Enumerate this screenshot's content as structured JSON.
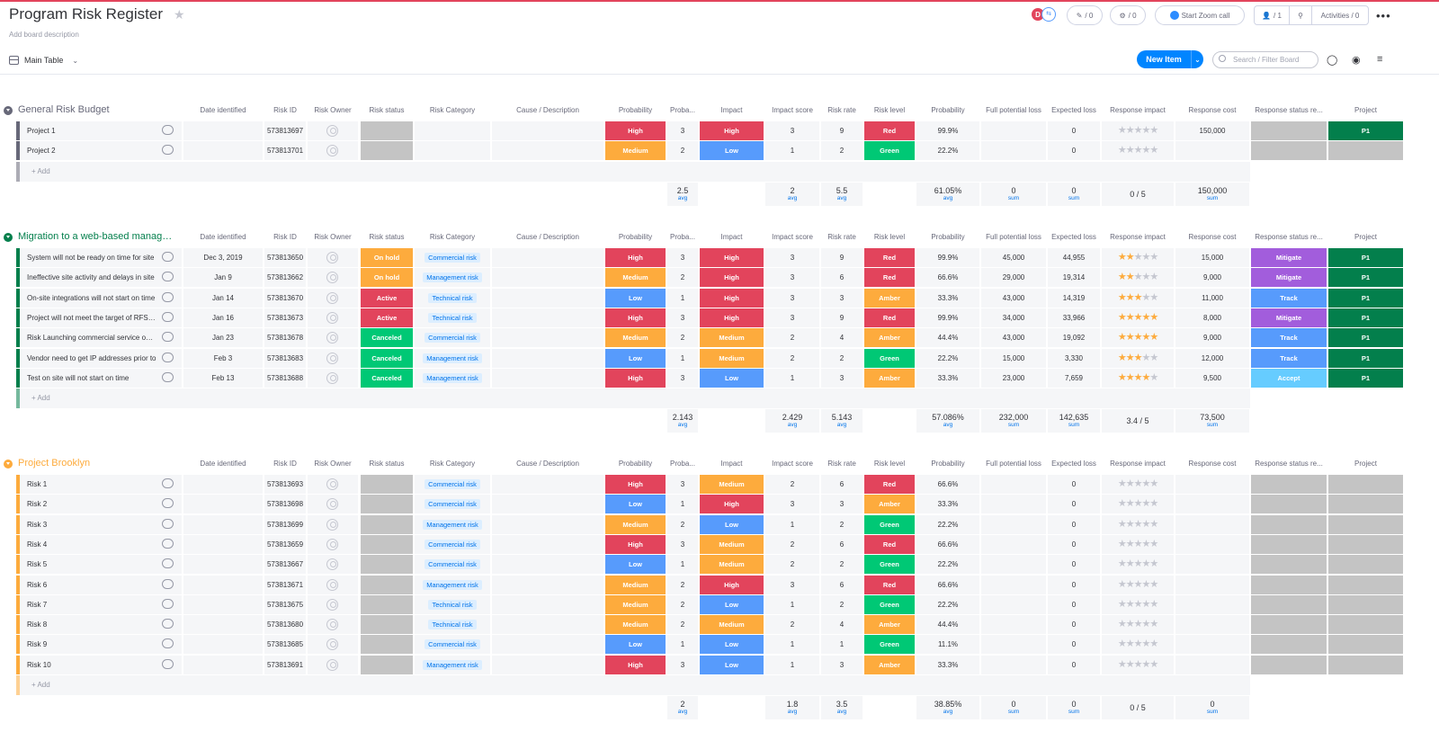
{
  "board": {
    "title": "Program Risk Register",
    "description": "Add board description",
    "view_label": "Main Table"
  },
  "header": {
    "avatar_initial": "D",
    "updates_count": "/ 0",
    "integrations_count": "/ 0",
    "zoom_label": "Start Zoom call",
    "members_count": "/ 1",
    "activities_label": "Activities / 0"
  },
  "toolbar": {
    "new_item_label": "New Item",
    "search_placeholder": "Search / Filter Board"
  },
  "colors": {
    "High": "#e2445c",
    "Medium": "#fdab3d",
    "Low": "#579bfc",
    "Red": "#e2445c",
    "Amber": "#fdab3d",
    "Green": "#00c875",
    "On hold": "#fdab3d",
    "Active": "#e2445c",
    "Canceled": "#00c875",
    "Mitigate": "#a25ddc",
    "Track": "#579bfc",
    "Accept": "#66ccff",
    "P1": "#037f4c",
    "empty": "#c4c4c4",
    "group_gray": "#676879",
    "group_green": "#037f4c",
    "group_orange": "#fdab3d",
    "star_on": "#fdab3d",
    "star_off": "#c5c7d0"
  },
  "columns": [
    "",
    "Date identified",
    "Risk ID",
    "Risk Owner",
    "Risk status",
    "Risk Category",
    "Cause / Description",
    "Probability",
    "Probability",
    "Impact",
    "Impact score",
    "Risk rate",
    "Risk level",
    "Probability",
    "Full potential loss",
    "Expected loss",
    "Response impact",
    "Response cost",
    "Response status re...",
    "Project"
  ],
  "add_label": "+ Add",
  "groups": [
    {
      "title": "General Risk Budget",
      "color": "#676879",
      "title_color": "#676879",
      "rows": [
        {
          "name": "Project 1",
          "date": "",
          "id": "573813697",
          "status": "",
          "category": "",
          "prob": "High",
          "prob_n": "3",
          "impact": "High",
          "impact_score": "3",
          "rate": "9",
          "level": "Red",
          "prob_pct": "99.9%",
          "full_loss": "",
          "exp_loss": "0",
          "stars": 0,
          "cost": "150,000",
          "resp_status": "",
          "project": "P1"
        },
        {
          "name": "Project 2",
          "date": "",
          "id": "573813701",
          "status": "",
          "category": "",
          "prob": "Medium",
          "prob_n": "2",
          "impact": "Low",
          "impact_score": "1",
          "rate": "2",
          "level": "Green",
          "prob_pct": "22.2%",
          "full_loss": "",
          "exp_loss": "0",
          "stars": 0,
          "cost": "",
          "resp_status": "",
          "project": ""
        }
      ],
      "summary": {
        "prob_n": "2.5",
        "impact_score": "2",
        "rate": "5.5",
        "prob_pct": "61.05%",
        "full_loss": "0",
        "exp_loss": "0",
        "resp_impact": "0 / 5",
        "cost": "150,000"
      }
    },
    {
      "title": "Migration to a web-based management system",
      "color": "#037f4c",
      "title_color": "#037f4c",
      "rows": [
        {
          "name": "System will not be ready on time for site",
          "date": "Dec 3, 2019",
          "id": "573813650",
          "status": "On hold",
          "category": "Commercial risk",
          "prob": "High",
          "prob_n": "3",
          "impact": "High",
          "impact_score": "3",
          "rate": "9",
          "level": "Red",
          "prob_pct": "99.9%",
          "full_loss": "45,000",
          "exp_loss": "44,955",
          "stars": 2,
          "cost": "15,000",
          "resp_status": "Mitigate",
          "project": "P1"
        },
        {
          "name": "Ineffective site activity and delays in site",
          "date": "Jan 9",
          "id": "573813662",
          "status": "On hold",
          "category": "Management risk",
          "prob": "Medium",
          "prob_n": "2",
          "impact": "High",
          "impact_score": "3",
          "rate": "6",
          "level": "Red",
          "prob_pct": "66.6%",
          "full_loss": "29,000",
          "exp_loss": "19,314",
          "stars": 2,
          "cost": "9,000",
          "resp_status": "Mitigate",
          "project": "P1"
        },
        {
          "name": "On-site integrations will not start on time",
          "date": "Jan 14",
          "id": "573813670",
          "status": "Active",
          "category": "Technical risk",
          "prob": "Low",
          "prob_n": "1",
          "impact": "High",
          "impact_score": "3",
          "rate": "3",
          "level": "Amber",
          "prob_pct": "33.3%",
          "full_loss": "43,000",
          "exp_loss": "14,319",
          "stars": 3,
          "cost": "11,000",
          "resp_status": "Track",
          "project": "P1"
        },
        {
          "name": "Project will not meet the target of RFS date",
          "date": "Jan 16",
          "id": "573813673",
          "status": "Active",
          "category": "Technical risk",
          "prob": "High",
          "prob_n": "3",
          "impact": "High",
          "impact_score": "3",
          "rate": "9",
          "level": "Red",
          "prob_pct": "99.9%",
          "full_loss": "34,000",
          "exp_loss": "33,966",
          "stars": 5,
          "cost": "8,000",
          "resp_status": "Mitigate",
          "project": "P1"
        },
        {
          "name": "Risk Launching commercial service on time",
          "date": "Jan 23",
          "id": "573813678",
          "status": "Canceled",
          "category": "Commercial risk",
          "prob": "Medium",
          "prob_n": "2",
          "impact": "Medium",
          "impact_score": "2",
          "rate": "4",
          "level": "Amber",
          "prob_pct": "44.4%",
          "full_loss": "43,000",
          "exp_loss": "19,092",
          "stars": 5,
          "cost": "9,000",
          "resp_status": "Track",
          "project": "P1"
        },
        {
          "name": "Vendor need to get IP addresses prior to",
          "date": "Feb 3",
          "id": "573813683",
          "status": "Canceled",
          "category": "Management risk",
          "prob": "Low",
          "prob_n": "1",
          "impact": "Medium",
          "impact_score": "2",
          "rate": "2",
          "level": "Green",
          "prob_pct": "22.2%",
          "full_loss": "15,000",
          "exp_loss": "3,330",
          "stars": 3,
          "cost": "12,000",
          "resp_status": "Track",
          "project": "P1"
        },
        {
          "name": "Test on site will not start on time",
          "date": "Feb 13",
          "id": "573813688",
          "status": "Canceled",
          "category": "Management risk",
          "prob": "High",
          "prob_n": "3",
          "impact": "Low",
          "impact_score": "1",
          "rate": "3",
          "level": "Amber",
          "prob_pct": "33.3%",
          "full_loss": "23,000",
          "exp_loss": "7,659",
          "stars": 4,
          "cost": "9,500",
          "resp_status": "Accept",
          "project": "P1"
        }
      ],
      "summary": {
        "prob_n": "2.143",
        "impact_score": "2.429",
        "rate": "5.143",
        "prob_pct": "57.086%",
        "full_loss": "232,000",
        "exp_loss": "142,635",
        "resp_impact": "3.4 / 5",
        "cost": "73,500"
      }
    },
    {
      "title": "Project Brooklyn",
      "color": "#fdab3d",
      "title_color": "#fdab3d",
      "rows": [
        {
          "name": "Risk 1",
          "date": "",
          "id": "573813693",
          "status": "",
          "category": "Commercial risk",
          "prob": "High",
          "prob_n": "3",
          "impact": "Medium",
          "impact_score": "2",
          "rate": "6",
          "level": "Red",
          "prob_pct": "66.6%",
          "full_loss": "",
          "exp_loss": "0",
          "stars": 0,
          "cost": "",
          "resp_status": "",
          "project": ""
        },
        {
          "name": "Risk 2",
          "date": "",
          "id": "573813698",
          "status": "",
          "category": "Commercial risk",
          "prob": "Low",
          "prob_n": "1",
          "impact": "High",
          "impact_score": "3",
          "rate": "3",
          "level": "Amber",
          "prob_pct": "33.3%",
          "full_loss": "",
          "exp_loss": "0",
          "stars": 0,
          "cost": "",
          "resp_status": "",
          "project": ""
        },
        {
          "name": "Risk 3",
          "date": "",
          "id": "573813699",
          "status": "",
          "category": "Management risk",
          "prob": "Medium",
          "prob_n": "2",
          "impact": "Low",
          "impact_score": "1",
          "rate": "2",
          "level": "Green",
          "prob_pct": "22.2%",
          "full_loss": "",
          "exp_loss": "0",
          "stars": 0,
          "cost": "",
          "resp_status": "",
          "project": ""
        },
        {
          "name": "Risk 4",
          "date": "",
          "id": "573813659",
          "status": "",
          "category": "Commercial risk",
          "prob": "High",
          "prob_n": "3",
          "impact": "Medium",
          "impact_score": "2",
          "rate": "6",
          "level": "Red",
          "prob_pct": "66.6%",
          "full_loss": "",
          "exp_loss": "0",
          "stars": 0,
          "cost": "",
          "resp_status": "",
          "project": ""
        },
        {
          "name": "Risk 5",
          "date": "",
          "id": "573813667",
          "status": "",
          "category": "Commercial risk",
          "prob": "Low",
          "prob_n": "1",
          "impact": "Medium",
          "impact_score": "2",
          "rate": "2",
          "level": "Green",
          "prob_pct": "22.2%",
          "full_loss": "",
          "exp_loss": "0",
          "stars": 0,
          "cost": "",
          "resp_status": "",
          "project": ""
        },
        {
          "name": "Risk 6",
          "date": "",
          "id": "573813671",
          "status": "",
          "category": "Management risk",
          "prob": "Medium",
          "prob_n": "2",
          "impact": "High",
          "impact_score": "3",
          "rate": "6",
          "level": "Red",
          "prob_pct": "66.6%",
          "full_loss": "",
          "exp_loss": "0",
          "stars": 0,
          "cost": "",
          "resp_status": "",
          "project": ""
        },
        {
          "name": "Risk 7",
          "date": "",
          "id": "573813675",
          "status": "",
          "category": "Technical risk",
          "prob": "Medium",
          "prob_n": "2",
          "impact": "Low",
          "impact_score": "1",
          "rate": "2",
          "level": "Green",
          "prob_pct": "22.2%",
          "full_loss": "",
          "exp_loss": "0",
          "stars": 0,
          "cost": "",
          "resp_status": "",
          "project": ""
        },
        {
          "name": "Risk 8",
          "date": "",
          "id": "573813680",
          "status": "",
          "category": "Technical risk",
          "prob": "Medium",
          "prob_n": "2",
          "impact": "Medium",
          "impact_score": "2",
          "rate": "4",
          "level": "Amber",
          "prob_pct": "44.4%",
          "full_loss": "",
          "exp_loss": "0",
          "stars": 0,
          "cost": "",
          "resp_status": "",
          "project": ""
        },
        {
          "name": "Risk 9",
          "date": "",
          "id": "573813685",
          "status": "",
          "category": "Commercial risk",
          "prob": "Low",
          "prob_n": "1",
          "impact": "Low",
          "impact_score": "1",
          "rate": "1",
          "level": "Green",
          "prob_pct": "11.1%",
          "full_loss": "",
          "exp_loss": "0",
          "stars": 0,
          "cost": "",
          "resp_status": "",
          "project": ""
        },
        {
          "name": "Risk 10",
          "date": "",
          "id": "573813691",
          "status": "",
          "category": "Management risk",
          "prob": "High",
          "prob_n": "3",
          "impact": "Low",
          "impact_score": "1",
          "rate": "3",
          "level": "Amber",
          "prob_pct": "33.3%",
          "full_loss": "",
          "exp_loss": "0",
          "stars": 0,
          "cost": "",
          "resp_status": "",
          "project": ""
        }
      ],
      "summary": {
        "prob_n": "2",
        "impact_score": "1.8",
        "rate": "3.5",
        "prob_pct": "38.85%",
        "full_loss": "0",
        "exp_loss": "0",
        "resp_impact": "0 / 5",
        "cost": "0"
      }
    }
  ],
  "summary_units": {
    "prob_n": "avg",
    "impact_score": "avg",
    "rate": "avg",
    "prob_pct": "avg",
    "full_loss": "sum",
    "exp_loss": "sum",
    "cost": "sum"
  }
}
